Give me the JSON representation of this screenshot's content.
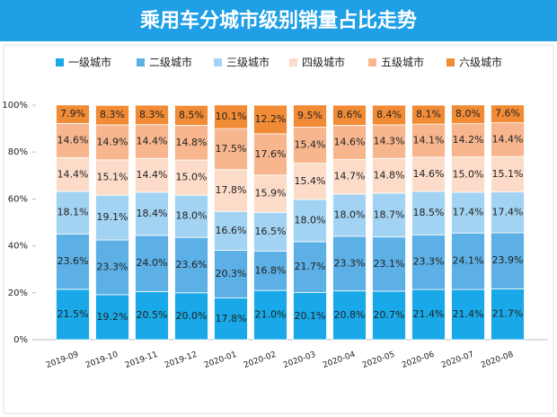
{
  "chart_data": {
    "type": "stacked_bar",
    "title": "乘用车分城市级别销量占比走势",
    "categories": [
      "2019-09",
      "2019-10",
      "2019-11",
      "2019-12",
      "2020-01",
      "2020-02",
      "2020-03",
      "2020-04",
      "2020-05",
      "2020-06",
      "2020-07",
      "2020-08"
    ],
    "series": [
      {
        "name": "一级城市",
        "color": "#19a9e8",
        "values": [
          21.5,
          19.2,
          20.5,
          20.0,
          17.8,
          21.0,
          20.1,
          20.8,
          20.7,
          21.4,
          21.4,
          21.7
        ],
        "value_labels": [
          "21.5%",
          "19.2%",
          "20.5%",
          "20.0%",
          "17.8%",
          "21.0%",
          "20.1%",
          "20.8%",
          "20.7%",
          "21.4%",
          "21.4%",
          "21.7%"
        ]
      },
      {
        "name": "二级城市",
        "color": "#5cb0e6",
        "values": [
          23.6,
          23.3,
          24.0,
          23.6,
          20.3,
          16.8,
          21.7,
          23.3,
          23.1,
          23.3,
          24.1,
          23.9
        ],
        "value_labels": [
          "23.6%",
          "23.3%",
          "24.0%",
          "23.6%",
          "20.3%",
          "16.8%",
          "21.7%",
          "23.3%",
          "23.1%",
          "23.3%",
          "24.1%",
          "23.9%"
        ]
      },
      {
        "name": "三级城市",
        "color": "#a3d3f2",
        "values": [
          18.1,
          19.1,
          18.4,
          18.0,
          16.6,
          16.5,
          18.0,
          18.0,
          18.7,
          18.5,
          17.4,
          17.4
        ],
        "value_labels": [
          "18.1%",
          "19.1%",
          "18.4%",
          "18.0%",
          "16.6%",
          "16.5%",
          "18.0%",
          "18.0%",
          "18.7%",
          "18.5%",
          "17.4%",
          "17.4%"
        ]
      },
      {
        "name": "四级城市",
        "color": "#fcdcc8",
        "values": [
          14.4,
          15.1,
          14.4,
          15.0,
          17.8,
          15.9,
          15.4,
          14.7,
          14.8,
          14.6,
          15.0,
          15.1
        ],
        "value_labels": [
          "14.4%",
          "15.1%",
          "14.4%",
          "15.0%",
          "17.8%",
          "15.9%",
          "15.4%",
          "14.7%",
          "14.8%",
          "14.6%",
          "15.0%",
          "15.1%"
        ]
      },
      {
        "name": "五级城市",
        "color": "#f7b68e",
        "values": [
          14.6,
          14.9,
          14.4,
          14.8,
          17.5,
          17.6,
          15.4,
          14.6,
          14.3,
          14.1,
          14.2,
          14.4
        ],
        "value_labels": [
          "14.6%",
          "14.9%",
          "14.4%",
          "14.8%",
          "17.5%",
          "17.6%",
          "15.4%",
          "14.6%",
          "14.3%",
          "14.1%",
          "14.2%",
          "14.4%"
        ]
      },
      {
        "name": "六级城市",
        "color": "#f28b35",
        "values": [
          7.9,
          8.3,
          8.3,
          8.5,
          10.1,
          12.2,
          9.5,
          8.6,
          8.4,
          8.1,
          8.0,
          7.6
        ],
        "value_labels": [
          "7.9%",
          "8.3%",
          "8.3%",
          "8.5%",
          "10.1%",
          "12.2%",
          "9.5%",
          "8.6%",
          "8.4%",
          "8.1%",
          "8.0%",
          "7.6%"
        ]
      }
    ],
    "ylim": [
      0,
      100
    ],
    "yticks": [
      {
        "value": 0,
        "label": "0%"
      },
      {
        "value": 20,
        "label": "20%"
      },
      {
        "value": 40,
        "label": "40%"
      },
      {
        "value": 60,
        "label": "60%"
      },
      {
        "value": 80,
        "label": "80%"
      },
      {
        "value": 100,
        "label": "100%"
      }
    ]
  }
}
